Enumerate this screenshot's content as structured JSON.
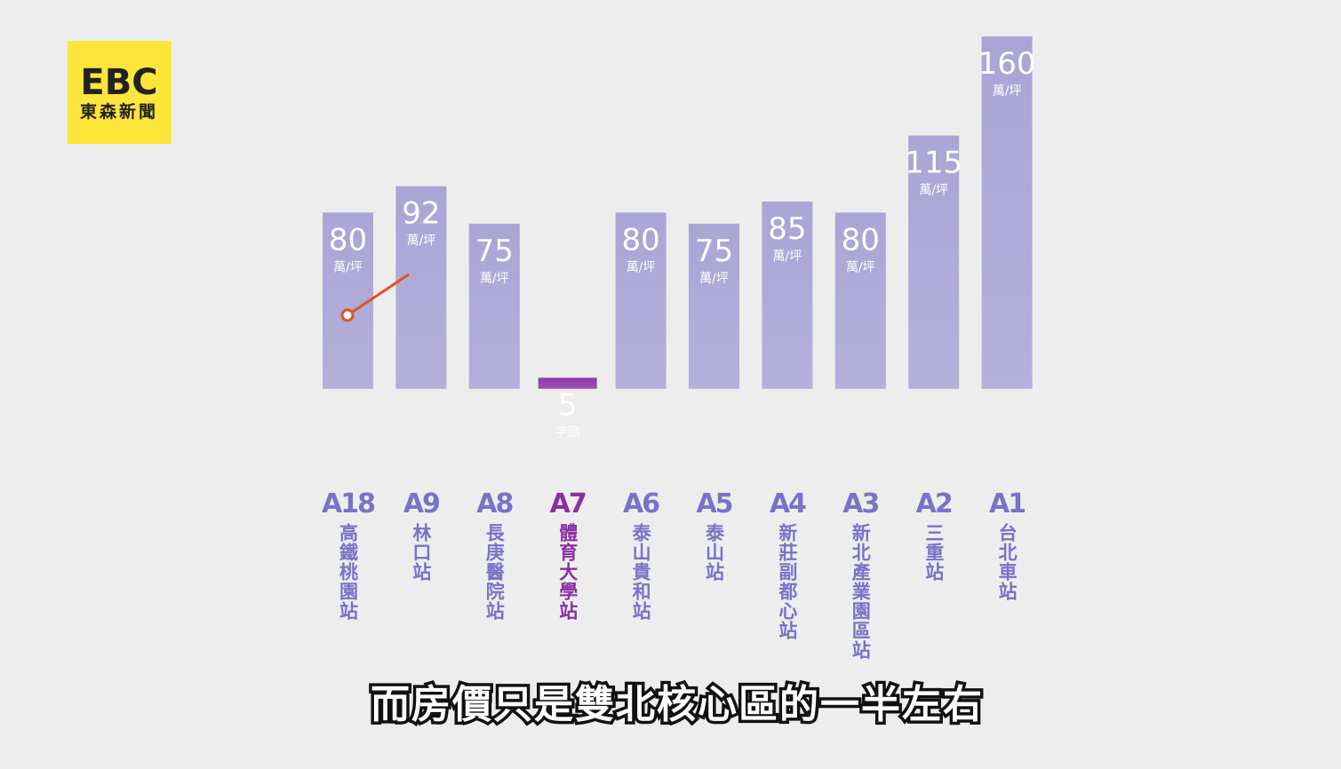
{
  "logo": {
    "brand": "EBC",
    "name": "東森新聞"
  },
  "caption": "而房價只是雙北核心區的一半左右",
  "chart_data": {
    "type": "bar",
    "categories": [
      "A18",
      "A9",
      "A8",
      "A7",
      "A6",
      "A5",
      "A4",
      "A3",
      "A2",
      "A1"
    ],
    "station_names": [
      "高鐵桃園站",
      "林口站",
      "長庚醫院站",
      "體育大學站",
      "泰山貴和站",
      "泰山站",
      "新莊副都心站",
      "新北產業園區站",
      "三重站",
      "台北車站"
    ],
    "values": [
      80,
      92,
      75,
      5,
      80,
      75,
      85,
      80,
      115,
      160
    ],
    "unit_labels": [
      "萬/坪",
      "萬/坪",
      "萬/坪",
      "字頭",
      "萬/坪",
      "萬/坪",
      "萬/坪",
      "萬/坪",
      "萬/坪",
      "萬/坪"
    ],
    "ylim": [
      -40,
      160
    ],
    "color": "#aaa5d5",
    "label_color": "#7a72c8",
    "highlight_category": "A7",
    "highlight_color": "#8f3aaa",
    "highlight_label_color": "#8a2fa5"
  }
}
